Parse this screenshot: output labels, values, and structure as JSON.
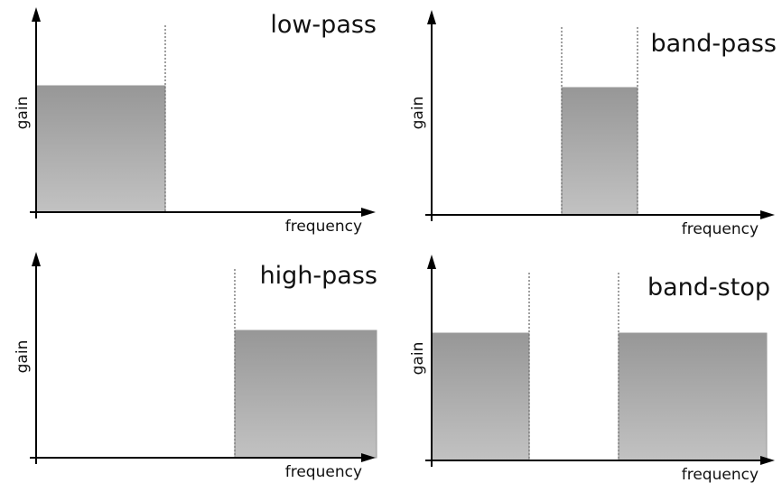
{
  "panels": [
    {
      "title": "low-pass",
      "ylabel": "gain",
      "xlabel": "frequency"
    },
    {
      "title": "band-pass",
      "ylabel": "gain",
      "xlabel": "frequency"
    },
    {
      "title": "high-pass",
      "ylabel": "gain",
      "xlabel": "frequency"
    },
    {
      "title": "band-stop",
      "ylabel": "gain",
      "xlabel": "frequency"
    }
  ],
  "colors": {
    "band_top": "#979797",
    "band_bottom": "#c2c2c2",
    "axis": "#000000",
    "cutoff_line": "#777777"
  }
}
